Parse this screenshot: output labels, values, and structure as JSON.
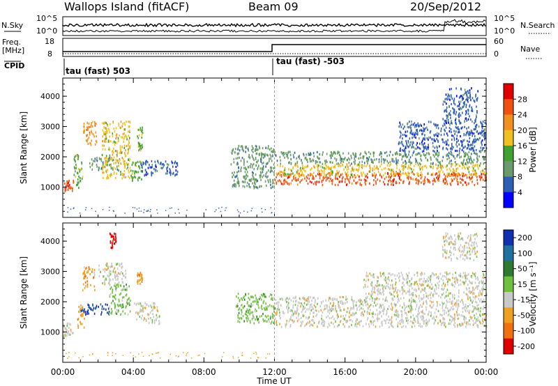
{
  "header": {
    "station": "Wallops Island (fitACF)",
    "beam": "Beam 09",
    "date": "20/Sep/2012"
  },
  "top_panels": {
    "nsky_label": "N.Sky",
    "nsky_ticks": [
      "10^5",
      "10^0"
    ],
    "nsearch_label": "N.Search",
    "nsearch_ticks": [
      "10^5",
      "10^0"
    ],
    "freq_label": "Freq.",
    "freq_unit": "[MHz]",
    "freq_ticks": [
      "18",
      "8"
    ],
    "nave_label": "Nave",
    "nave_ticks": [
      "60",
      "0"
    ],
    "cpid_label": "CPID",
    "cpid_segments": [
      {
        "label": "tau (fast) 503",
        "start_hour": 0
      },
      {
        "label": "tau (fast) -503",
        "start_hour": 12
      }
    ]
  },
  "time_axis": {
    "title": "Time UT",
    "ticks": [
      "00:00",
      "04:00",
      "08:00",
      "12:00",
      "16:00",
      "20:00",
      "00:00"
    ]
  },
  "chart_data": [
    {
      "type": "heatmap",
      "name": "power",
      "xlabel": "Time UT",
      "ylabel": "Slant Range [km]",
      "xlim": [
        0,
        24
      ],
      "ylim": [
        0,
        4600
      ],
      "yticks": [
        "1000",
        "2000",
        "3000",
        "4000"
      ],
      "colorbar": {
        "label": "Power [dB]",
        "ticks": [
          "4",
          "8",
          "12",
          "16",
          "20",
          "24",
          "28"
        ],
        "colors": [
          "#0000ff",
          "#2e5fb4",
          "#6a9a6a",
          "#40a030",
          "#f0c020",
          "#f09020",
          "#f05010",
          "#e00000"
        ]
      },
      "regions": [
        {
          "t0": 0.0,
          "t1": 0.6,
          "r0": 900,
          "r1": 1250,
          "level": 6
        },
        {
          "t0": 0.6,
          "t1": 1.1,
          "r0": 1000,
          "r1": 2100,
          "level": 3
        },
        {
          "t0": 1.1,
          "t1": 1.9,
          "r0": 2400,
          "r1": 3200,
          "level": 5
        },
        {
          "t0": 1.5,
          "t1": 3.2,
          "r0": 1600,
          "r1": 2000,
          "level": 2
        },
        {
          "t0": 2.2,
          "t1": 3.8,
          "r0": 1300,
          "r1": 3200,
          "level": 4
        },
        {
          "t0": 3.8,
          "t1": 4.5,
          "r0": 1200,
          "r1": 1900,
          "level": 3
        },
        {
          "t0": 4.2,
          "t1": 4.5,
          "r0": 2200,
          "r1": 3000,
          "level": 3
        },
        {
          "t0": 4.4,
          "t1": 6.5,
          "r0": 1400,
          "r1": 1900,
          "level": 1
        },
        {
          "t0": 9.5,
          "t1": 12.0,
          "r0": 1000,
          "r1": 2400,
          "level": 2
        },
        {
          "t0": 12.0,
          "t1": 24.0,
          "r0": 1100,
          "r1": 1500,
          "level": 6
        },
        {
          "t0": 12.0,
          "t1": 24.0,
          "r0": 1400,
          "r1": 1800,
          "level": 4
        },
        {
          "t0": 12.0,
          "t1": 24.0,
          "r0": 1800,
          "r1": 2200,
          "level": 2
        },
        {
          "t0": 19.0,
          "t1": 24.0,
          "r0": 2200,
          "r1": 3200,
          "level": 1
        },
        {
          "t0": 21.5,
          "t1": 23.5,
          "r0": 3200,
          "r1": 4300,
          "level": 1
        }
      ]
    },
    {
      "type": "heatmap",
      "name": "velocity",
      "xlabel": "Time UT",
      "ylabel": "Slant Range [km]",
      "xlim": [
        0,
        24
      ],
      "ylim": [
        0,
        4600
      ],
      "yticks": [
        "1000",
        "2000",
        "3000",
        "4000"
      ],
      "colorbar": {
        "label": "Velocity [m s⁻¹]",
        "ticks": [
          "200",
          "100",
          "50",
          "15",
          "-15",
          "-50",
          "-100",
          "-200"
        ],
        "colors": [
          "#1030b0",
          "#2070a0",
          "#307a30",
          "#70c040",
          "#c8c8c8",
          "#f0a020",
          "#f07010",
          "#e00000"
        ]
      },
      "regions": [
        {
          "t0": 0.0,
          "t1": 0.6,
          "r0": 900,
          "r1": 1350,
          "level": 4
        },
        {
          "t0": 0.8,
          "t1": 1.2,
          "r0": 1100,
          "r1": 2000,
          "level": 5
        },
        {
          "t0": 1.1,
          "t1": 1.8,
          "r0": 2400,
          "r1": 3200,
          "level": 5
        },
        {
          "t0": 1.0,
          "t1": 2.6,
          "r0": 1600,
          "r1": 1950,
          "level": 0
        },
        {
          "t0": 2.0,
          "t1": 3.6,
          "r0": 2600,
          "r1": 3300,
          "level": 4
        },
        {
          "t0": 2.6,
          "t1": 3.8,
          "r0": 1600,
          "r1": 2600,
          "level": 3
        },
        {
          "t0": 2.6,
          "t1": 3.0,
          "r0": 3800,
          "r1": 4300,
          "level": 7
        },
        {
          "t0": 4.2,
          "t1": 4.5,
          "r0": 2600,
          "r1": 3000,
          "level": 5
        },
        {
          "t0": 4.0,
          "t1": 5.5,
          "r0": 1300,
          "r1": 2000,
          "level": 4
        },
        {
          "t0": 9.8,
          "t1": 12.0,
          "r0": 1300,
          "r1": 2300,
          "level": 3
        },
        {
          "t0": 12.0,
          "t1": 24.0,
          "r0": 1200,
          "r1": 2200,
          "level": 4
        },
        {
          "t0": 17.0,
          "t1": 24.0,
          "r0": 2200,
          "r1": 3000,
          "level": 4
        },
        {
          "t0": 21.5,
          "t1": 23.5,
          "r0": 3400,
          "r1": 4300,
          "level": 4
        }
      ]
    }
  ]
}
